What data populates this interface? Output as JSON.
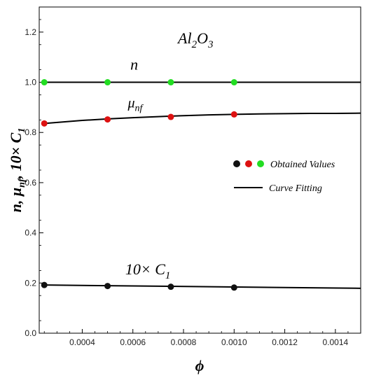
{
  "chart_data": {
    "type": "scatter",
    "title": "Al2O3",
    "title_parts": {
      "base1": "Al",
      "sub1": "2",
      "base2": "O",
      "sub2": "3"
    },
    "xlabel": "ϕ",
    "ylabel": "n, μnf, 10× C1",
    "ylabel_parts": {
      "a": "n, μ",
      "sub_nf": "nf",
      "b": ", 10× C",
      "sub_1": "1"
    },
    "xlim": [
      0.00023,
      0.0015
    ],
    "ylim": [
      0.0,
      1.3
    ],
    "x_ticks": [
      0.0004,
      0.0006,
      0.0008,
      0.001,
      0.0012,
      0.0014
    ],
    "x_tick_labels": [
      "0.0004",
      "0.0006",
      "0.0008",
      "0.0010",
      "0.0012",
      "0.0014"
    ],
    "y_ticks": [
      0.0,
      0.2,
      0.4,
      0.6,
      0.8,
      1.0,
      1.2
    ],
    "y_tick_labels": [
      "0.0",
      "0.2",
      "0.4",
      "0.6",
      "0.8",
      "1.0",
      "1.2"
    ],
    "grid": false,
    "series": [
      {
        "name": "n",
        "label_parts": {
          "base": "n",
          "sub": ""
        },
        "marker_color": "#22dd22",
        "points": {
          "x": [
            0.00025,
            0.0005,
            0.00075,
            0.001
          ],
          "y": [
            1.0,
            1.0,
            1.0,
            1.0
          ]
        },
        "fit": {
          "x": [
            0.00025,
            0.0015
          ],
          "y": [
            1.0,
            1.0
          ]
        },
        "label_at": [
          0.00059,
          1.05
        ]
      },
      {
        "name": "μnf",
        "label_parts": {
          "base": "μ",
          "sub": "nf"
        },
        "marker_color": "#dd1111",
        "points": {
          "x": [
            0.00025,
            0.0005,
            0.00075,
            0.001
          ],
          "y": [
            0.836,
            0.852,
            0.862,
            0.872
          ]
        },
        "fit": {
          "x": [
            0.00025,
            0.0004,
            0.0005,
            0.0006,
            0.0007,
            0.00075,
            0.0008,
            0.0009,
            0.001,
            0.0011,
            0.0012,
            0.0013,
            0.0014,
            0.0015
          ],
          "y": [
            0.836,
            0.848,
            0.854,
            0.859,
            0.863,
            0.865,
            0.867,
            0.87,
            0.872,
            0.874,
            0.875,
            0.876,
            0.876,
            0.877
          ]
        },
        "label_at": [
          0.00058,
          0.9
        ]
      },
      {
        "name": "10× C1",
        "label_parts": {
          "base": "10× C",
          "sub": "1"
        },
        "marker_color": "#111111",
        "points": {
          "x": [
            0.00025,
            0.0005,
            0.00075,
            0.001
          ],
          "y": [
            0.192,
            0.188,
            0.185,
            0.182
          ]
        },
        "fit": {
          "x": [
            0.00025,
            0.0015
          ],
          "y": [
            0.192,
            0.179
          ]
        },
        "label_at": [
          0.00057,
          0.235
        ]
      }
    ],
    "legend": {
      "position": "center-right",
      "entries": [
        {
          "kind": "dots",
          "colors": [
            "#111111",
            "#dd1111",
            "#22dd22"
          ],
          "label": "Obtained Values"
        },
        {
          "kind": "line",
          "color": "#000000",
          "label": "Curve Fitting"
        }
      ]
    }
  }
}
